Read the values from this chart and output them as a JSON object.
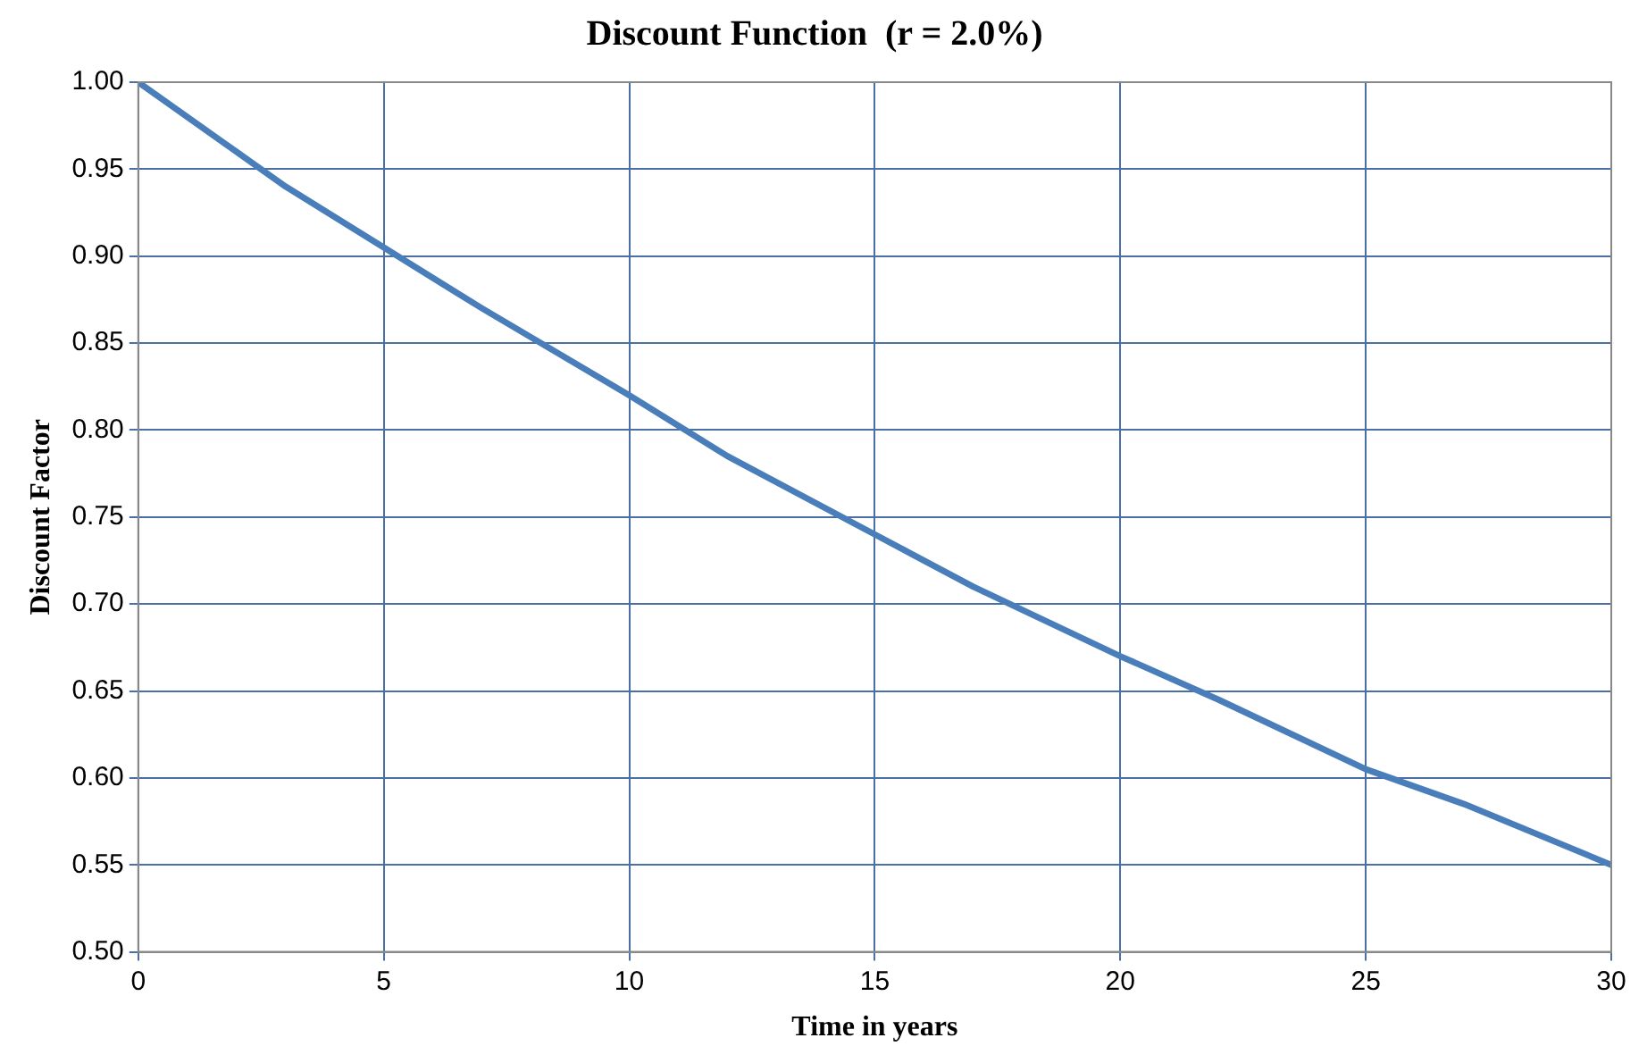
{
  "chart_data": {
    "type": "line",
    "title": "Discount Function  (r = 2.0%)",
    "xlabel": "Time in years",
    "ylabel": "Discount Factor",
    "x": [
      0,
      2,
      3,
      5,
      7,
      10,
      12,
      15,
      17,
      20,
      22,
      25,
      27,
      30
    ],
    "series": [
      {
        "color": "#4a7ebb",
        "values": [
          1.0,
          0.96,
          0.94,
          0.905,
          0.87,
          0.82,
          0.785,
          0.74,
          0.71,
          0.67,
          0.645,
          0.605,
          0.585,
          0.55
        ]
      }
    ],
    "xlim": [
      0,
      30
    ],
    "ylim": [
      0.5,
      1.0
    ],
    "xticks": [
      0,
      5,
      10,
      15,
      20,
      25,
      30
    ],
    "yticks": [
      {
        "value": 0.5,
        "label": "0.50"
      },
      {
        "value": 0.55,
        "label": "0.55"
      },
      {
        "value": 0.6,
        "label": "0.60"
      },
      {
        "value": 0.65,
        "label": "0.65"
      },
      {
        "value": 0.7,
        "label": "0.70"
      },
      {
        "value": 0.75,
        "label": "0.75"
      },
      {
        "value": 0.8,
        "label": "0.80"
      },
      {
        "value": 0.85,
        "label": "0.85"
      },
      {
        "value": 0.9,
        "label": "0.90"
      },
      {
        "value": 0.95,
        "label": "0.95"
      },
      {
        "value": 1.0,
        "label": "1.00"
      }
    ],
    "grid": true,
    "marker": "none",
    "line_style": "solid"
  }
}
